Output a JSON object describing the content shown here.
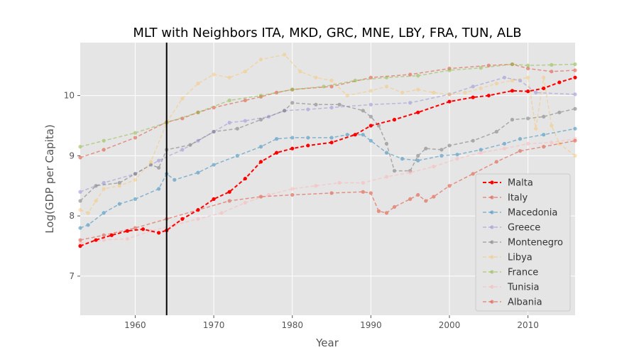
{
  "chart_data": {
    "type": "line",
    "title": "MLT with Neighbors ITA, MKD, GRC, MNE, LBY, FRA, TUN, ALB",
    "xlabel": "Year",
    "ylabel": "Log(GDP per Capita)",
    "xlim": [
      1953,
      2016
    ],
    "ylim": [
      6.35,
      10.88
    ],
    "xticks": [
      1960,
      1970,
      1980,
      1990,
      2000,
      2010
    ],
    "yticks": [
      7,
      8,
      9,
      10
    ],
    "grid": true,
    "legend_position": "lower-right",
    "vertical_marker_x": 1964,
    "series": [
      {
        "name": "Malta",
        "color": "#ff0000",
        "alpha": 1.0,
        "linewidth": 2,
        "x": [
          1953,
          1955,
          1957,
          1959,
          1961,
          1963,
          1964,
          1966,
          1968,
          1970,
          1972,
          1974,
          1976,
          1978,
          1980,
          1982,
          1985,
          1988,
          1990,
          1993,
          1996,
          2000,
          2003,
          2005,
          2008,
          2010,
          2012,
          2014,
          2016
        ],
        "y": [
          7.5,
          7.6,
          7.68,
          7.75,
          7.78,
          7.72,
          7.76,
          7.95,
          8.1,
          8.28,
          8.4,
          8.62,
          8.9,
          9.05,
          9.12,
          9.17,
          9.22,
          9.35,
          9.5,
          9.6,
          9.72,
          9.9,
          9.97,
          10.0,
          10.08,
          10.07,
          10.12,
          10.22,
          10.3
        ]
      },
      {
        "name": "Italy",
        "color": "#e24a33",
        "alpha": 0.55,
        "linewidth": 1.5,
        "x": [
          1953,
          1956,
          1960,
          1964,
          1966,
          1968,
          1970,
          1974,
          1976,
          1978,
          1980,
          1985,
          1990,
          1995,
          2000,
          2005,
          2008,
          2010,
          2013,
          2016
        ],
        "y": [
          8.97,
          9.1,
          9.3,
          9.56,
          9.62,
          9.72,
          9.8,
          9.92,
          9.98,
          10.05,
          10.1,
          10.15,
          10.3,
          10.35,
          10.45,
          10.5,
          10.52,
          10.45,
          10.4,
          10.42
        ]
      },
      {
        "name": "Macedonia",
        "color": "#348abd",
        "alpha": 0.55,
        "linewidth": 1.5,
        "x": [
          1953,
          1954,
          1956,
          1958,
          1960,
          1963,
          1964,
          1965,
          1968,
          1970,
          1973,
          1976,
          1978,
          1980,
          1982,
          1985,
          1987,
          1989,
          1990,
          1992,
          1994,
          1996,
          1999,
          2001,
          2004,
          2007,
          2009,
          2012,
          2016
        ],
        "y": [
          7.8,
          7.85,
          8.05,
          8.2,
          8.28,
          8.45,
          8.7,
          8.6,
          8.72,
          8.85,
          9.0,
          9.15,
          9.28,
          9.3,
          9.3,
          9.3,
          9.35,
          9.35,
          9.25,
          9.05,
          8.95,
          8.92,
          9.0,
          9.02,
          9.1,
          9.2,
          9.28,
          9.35,
          9.45
        ]
      },
      {
        "name": "Greece",
        "color": "#988ed5",
        "alpha": 0.55,
        "linewidth": 1.5,
        "x": [
          1953,
          1956,
          1960,
          1963,
          1966,
          1968,
          1970,
          1972,
          1974,
          1977,
          1979,
          1982,
          1985,
          1990,
          1995,
          2000,
          2003,
          2007,
          2009,
          2011,
          2016
        ],
        "y": [
          8.4,
          8.55,
          8.7,
          8.92,
          9.1,
          9.25,
          9.4,
          9.55,
          9.58,
          9.65,
          9.75,
          9.77,
          9.8,
          9.85,
          9.88,
          10.02,
          10.15,
          10.3,
          10.25,
          10.05,
          10.02
        ]
      },
      {
        "name": "Montenegro",
        "color": "#777777",
        "alpha": 0.55,
        "linewidth": 1.5,
        "x": [
          1953,
          1955,
          1958,
          1960,
          1962,
          1963,
          1964,
          1967,
          1970,
          1973,
          1976,
          1979,
          1980,
          1983,
          1986,
          1989,
          1990,
          1991,
          1992,
          1993,
          1995,
          1996,
          1997,
          1999,
          2000,
          2003,
          2006,
          2008,
          2010,
          2012,
          2014,
          2016
        ],
        "y": [
          8.25,
          8.5,
          8.55,
          8.7,
          8.85,
          8.8,
          9.1,
          9.18,
          9.4,
          9.45,
          9.6,
          9.75,
          9.88,
          9.85,
          9.85,
          9.75,
          9.65,
          9.5,
          9.2,
          8.75,
          8.75,
          9.0,
          9.12,
          9.1,
          9.17,
          9.25,
          9.4,
          9.6,
          9.62,
          9.65,
          9.72,
          9.78
        ]
      },
      {
        "name": "Libya",
        "color": "#fbc15e",
        "alpha": 0.45,
        "linewidth": 1.5,
        "x": [
          1953,
          1954,
          1955,
          1956,
          1958,
          1960,
          1962,
          1964,
          1966,
          1968,
          1970,
          1972,
          1974,
          1976,
          1979,
          1981,
          1983,
          1985,
          1987,
          1990,
          1992,
          1994,
          1996,
          1998,
          2000,
          2002,
          2004,
          2006,
          2008,
          2010,
          2011,
          2012,
          2013,
          2014,
          2016
        ],
        "y": [
          8.1,
          8.05,
          8.25,
          8.45,
          8.5,
          8.6,
          8.9,
          9.55,
          9.95,
          10.2,
          10.35,
          10.3,
          10.4,
          10.6,
          10.68,
          10.4,
          10.3,
          10.25,
          10.0,
          10.08,
          10.15,
          10.05,
          10.1,
          10.05,
          10.02,
          10.05,
          10.12,
          10.2,
          10.25,
          10.3,
          9.45,
          10.3,
          9.5,
          9.2,
          9.0
        ]
      },
      {
        "name": "France",
        "color": "#8eba42",
        "alpha": 0.55,
        "linewidth": 1.5,
        "x": [
          1953,
          1956,
          1960,
          1964,
          1968,
          1972,
          1976,
          1980,
          1984,
          1988,
          1992,
          1996,
          2000,
          2004,
          2008,
          2010,
          2013,
          2016
        ],
        "y": [
          9.15,
          9.25,
          9.38,
          9.55,
          9.72,
          9.92,
          10.0,
          10.1,
          10.15,
          10.25,
          10.3,
          10.33,
          10.42,
          10.46,
          10.52,
          10.5,
          10.51,
          10.52
        ]
      },
      {
        "name": "Tunisia",
        "color": "#ffb5b8",
        "alpha": 0.55,
        "linewidth": 1.5,
        "x": [
          1953,
          1956,
          1959,
          1962,
          1965,
          1968,
          1971,
          1974,
          1977,
          1980,
          1983,
          1986,
          1989,
          1992,
          1995,
          1998,
          2001,
          2004,
          2007,
          2010,
          2013,
          2016
        ],
        "y": [
          7.55,
          7.6,
          7.62,
          7.75,
          7.85,
          7.95,
          8.05,
          8.22,
          8.35,
          8.45,
          8.5,
          8.55,
          8.55,
          8.65,
          8.72,
          8.82,
          8.95,
          9.05,
          9.12,
          9.2,
          9.22,
          9.28
        ]
      },
      {
        "name": "Albania",
        "color": "#e24a33",
        "alpha": 0.55,
        "linewidth": 1.5,
        "x": [
          1953,
          1956,
          1960,
          1964,
          1968,
          1972,
          1976,
          1980,
          1985,
          1989,
          1990,
          1991,
          1992,
          1993,
          1995,
          1996,
          1997,
          1998,
          2000,
          2003,
          2006,
          2009,
          2012,
          2016
        ],
        "y": [
          7.6,
          7.68,
          7.8,
          7.95,
          8.1,
          8.25,
          8.32,
          8.35,
          8.38,
          8.4,
          8.38,
          8.08,
          8.05,
          8.15,
          8.28,
          8.35,
          8.25,
          8.32,
          8.5,
          8.7,
          8.9,
          9.08,
          9.15,
          9.25
        ]
      }
    ]
  }
}
